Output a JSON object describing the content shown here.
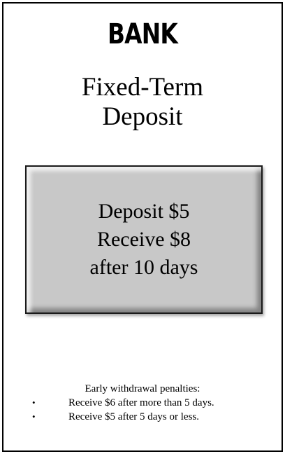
{
  "card": {
    "bank_label": "BANK",
    "product_title_line1": "Fixed-Term",
    "product_title_line2": "Deposit"
  },
  "offer": {
    "line1": "Deposit $5",
    "line2": "Receive $8",
    "line3": "after 10 days"
  },
  "penalties": {
    "heading": "Early withdrawal penalties:",
    "items": [
      {
        "bullet": "•",
        "text": "Receive $6 after more than 5 days."
      },
      {
        "bullet": "•",
        "text": "Receive $5 after 5 days or less."
      }
    ]
  }
}
